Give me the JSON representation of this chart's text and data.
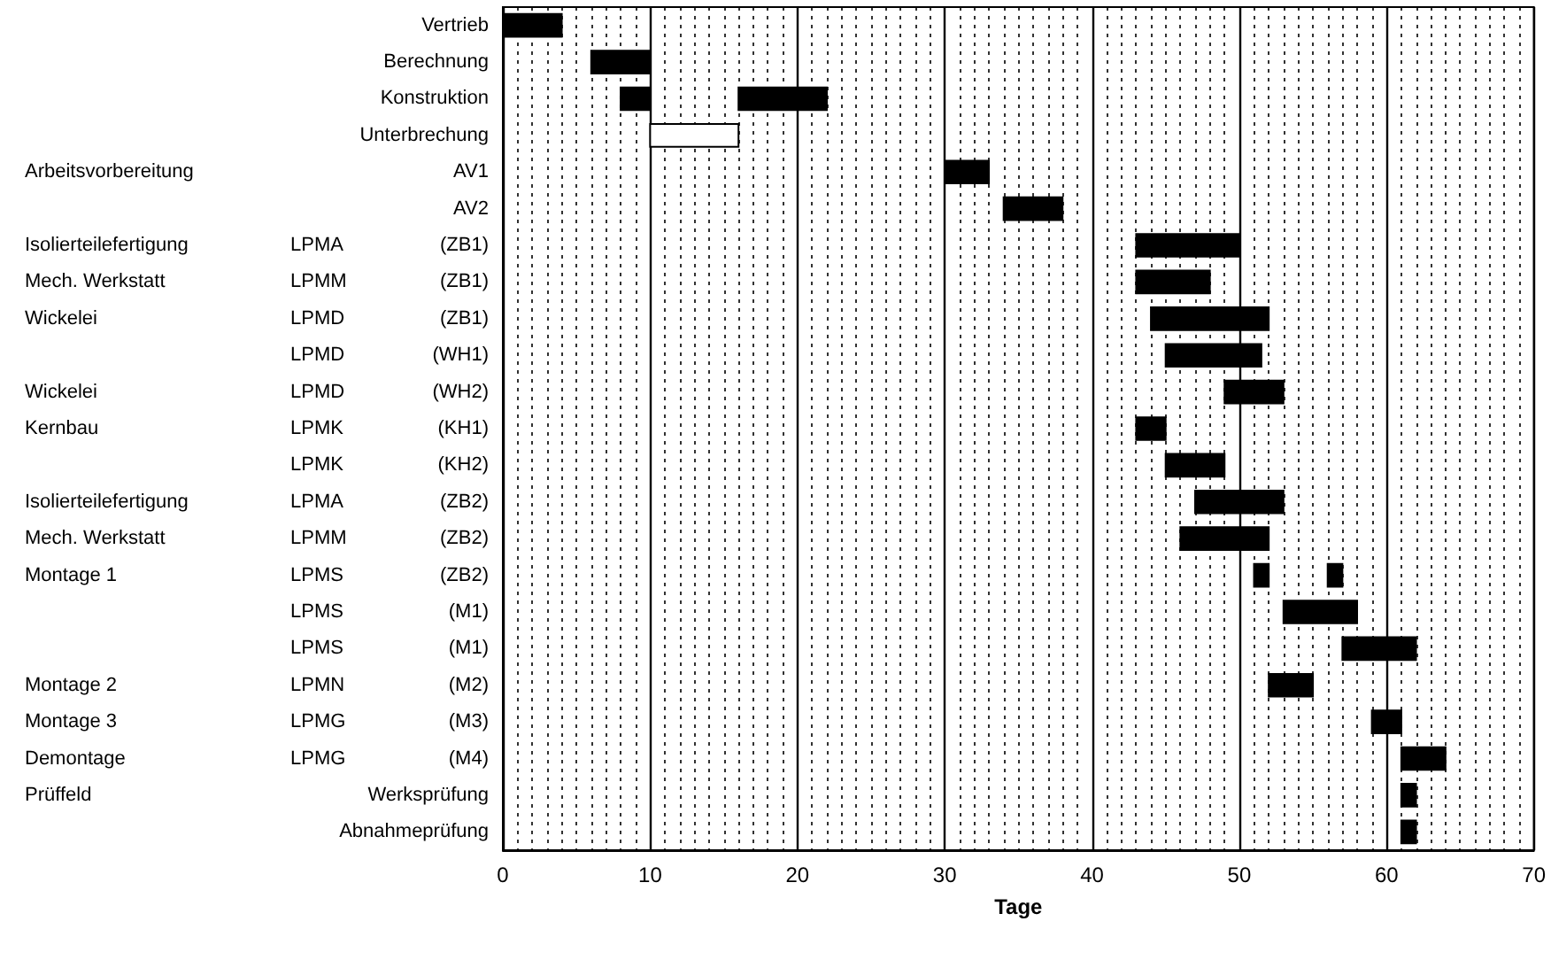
{
  "chart_data": {
    "type": "bar",
    "orientation": "horizontal",
    "xlabel": "Tage",
    "categories": [
      "Vertrieb",
      "Berechnung",
      "Konstruktion",
      "Unterbrechung",
      "Arbeitsvorbereitung    AV1",
      "AV2",
      "Isolierteilefertigung  LPMA  (ZB1)",
      "Mech. Werkstatt  LPMM  (ZB1)",
      "Wickelei  LPMD  (ZB1)",
      "  LPMD  (WH1)",
      "Wickelei  LPMD  (WH2)",
      "Kernbau  LPMK  (KH1)",
      "  LPMK  (KH2)",
      "Isolierteilefertigung  LPMA  (ZB2)",
      "Mech. Werkstatt  LPMM  (ZB2)",
      "Montage 1  LPMS  (ZB2)",
      "  LPMS  (M1)",
      "  LPMS  (M1)",
      "Montage 2  LPMN  (M2)",
      "Montage 3  LPMG  (M3)",
      "Demontage  LPMG  (M4)",
      "Prüffeld    Werksprüfung",
      "Abnahmeprüfung"
    ],
    "series": [
      {
        "colors": [
          "#000000",
          "#000000",
          "#000000",
          "#ffffff",
          "#000000",
          "#000000",
          "#000000",
          "#000000",
          "#000000",
          "#000000",
          "#000000",
          "#000000",
          "#000000",
          "#000000",
          "#000000",
          "#000000",
          "#000000",
          "#000000",
          "#000000",
          "#000000",
          "#000000",
          "#000000",
          "#000000"
        ],
        "base": [
          0,
          6,
          8,
          10,
          30,
          34,
          43,
          43,
          44,
          45,
          49,
          43,
          45,
          47,
          46,
          51,
          53,
          57,
          52,
          59,
          61,
          61,
          61
        ],
        "values": [
          4,
          4,
          2,
          6,
          3,
          4,
          7,
          5,
          8,
          6.5,
          4,
          2,
          4,
          6,
          6,
          1,
          5,
          5,
          3,
          2,
          3,
          1,
          1
        ]
      },
      {
        "color": "#000000",
        "base": [
          null,
          null,
          16,
          null,
          null,
          null,
          null,
          null,
          null,
          null,
          null,
          null,
          null,
          null,
          null,
          56,
          null,
          null,
          null,
          null,
          null,
          null,
          null
        ],
        "values": [
          null,
          null,
          6,
          null,
          null,
          null,
          null,
          null,
          null,
          null,
          null,
          null,
          null,
          null,
          null,
          1,
          null,
          null,
          null,
          null,
          null,
          null,
          null
        ]
      }
    ],
    "xlim": [
      0,
      70
    ],
    "xticks": [
      0,
      10,
      20,
      30,
      40,
      50,
      60,
      70
    ],
    "grid": "x"
  }
}
